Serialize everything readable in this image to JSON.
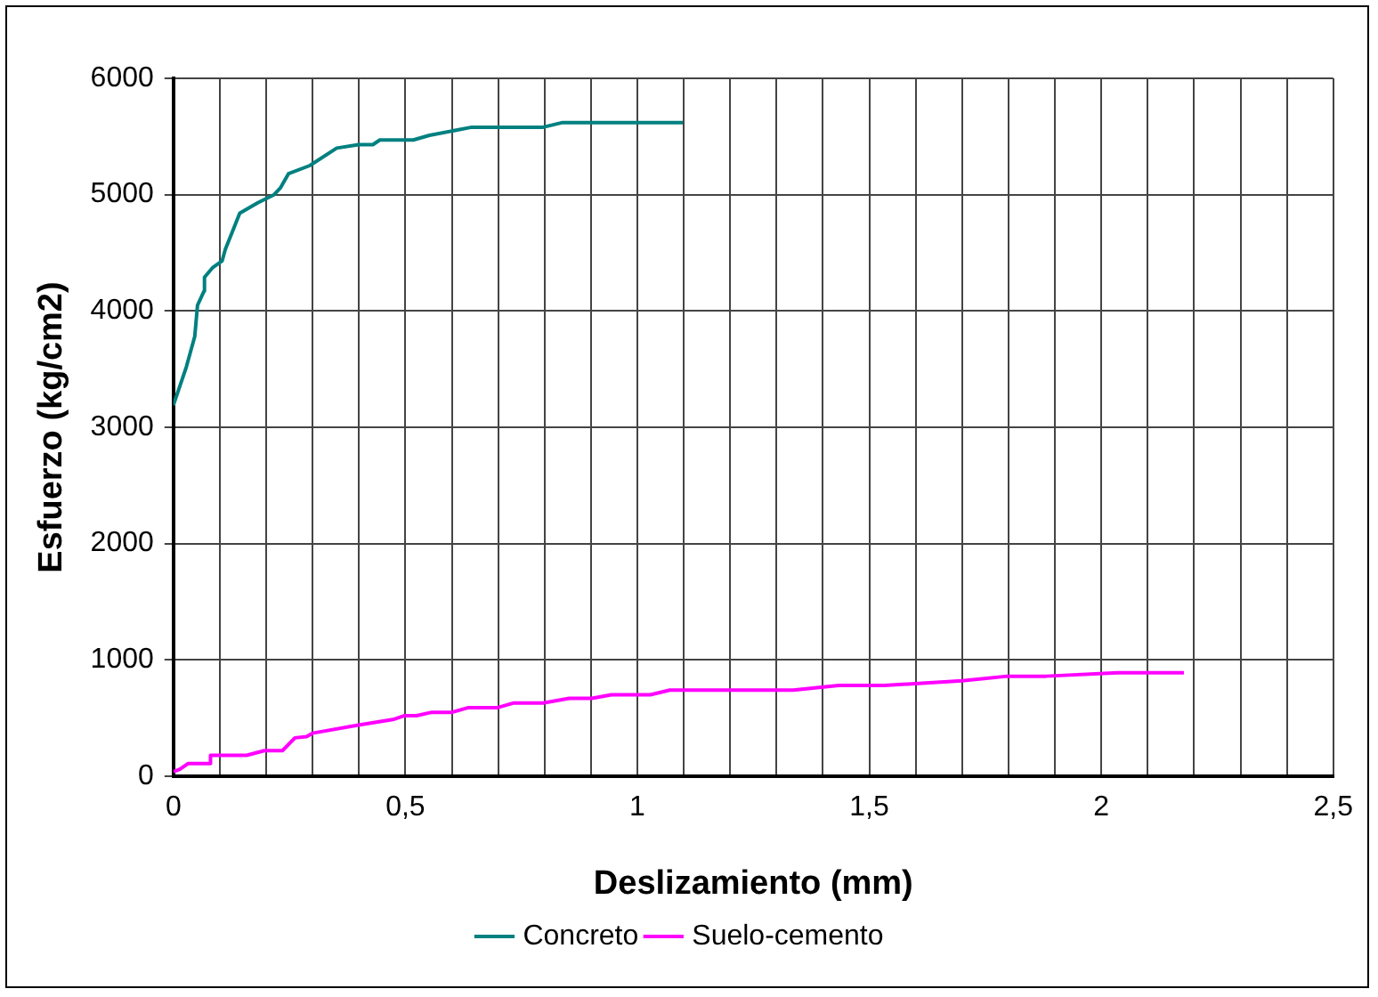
{
  "chart_data": {
    "type": "line",
    "xlabel": "Deslizamiento (mm)",
    "ylabel": "Esfuerzo (kg/cm2)",
    "xlim": [
      0,
      2.5
    ],
    "ylim": [
      0,
      6000
    ],
    "xticks": [
      0,
      {
        "value": 0.1,
        "label": null
      },
      {
        "value": 0.2,
        "label": null
      },
      {
        "value": 0.3,
        "label": null
      },
      {
        "value": 0.4,
        "label": null
      },
      {
        "value": 0.5,
        "label": "0,5"
      },
      {
        "value": 0.6,
        "label": null
      },
      {
        "value": 0.7,
        "label": null
      },
      {
        "value": 0.8,
        "label": null
      },
      {
        "value": 0.9,
        "label": null
      },
      1,
      {
        "value": 1.1,
        "label": null
      },
      {
        "value": 1.2,
        "label": null
      },
      {
        "value": 1.3,
        "label": null
      },
      {
        "value": 1.4,
        "label": null
      },
      {
        "value": 1.5,
        "label": "1,5"
      },
      {
        "value": 1.6,
        "label": null
      },
      {
        "value": 1.7,
        "label": null
      },
      {
        "value": 1.8,
        "label": null
      },
      {
        "value": 1.9,
        "label": null
      },
      2,
      {
        "value": 2.1,
        "label": null
      },
      {
        "value": 2.2,
        "label": null
      },
      {
        "value": 2.3,
        "label": null
      },
      {
        "value": 2.4,
        "label": null
      },
      {
        "value": 2.5,
        "label": "2,5"
      }
    ],
    "yticks": [
      0,
      1000,
      2000,
      3000,
      4000,
      5000,
      6000
    ],
    "grid": true,
    "legend": "bottom",
    "marker": "none",
    "line_style": "solid",
    "series": [
      {
        "name": "Concreto",
        "color": "#008080",
        "x": [
          0,
          0.028,
          0.046,
          0.052,
          0.066,
          0.067,
          0.084,
          0.105,
          0.112,
          0.143,
          0.182,
          0.217,
          0.231,
          0.248,
          0.294,
          0.352,
          0.399,
          0.43,
          0.445,
          0.517,
          0.552,
          0.643,
          0.797,
          0.839,
          1.098
        ],
        "values": [
          3190,
          3520,
          3780,
          4050,
          4170,
          4290,
          4370,
          4430,
          4530,
          4840,
          4930,
          5000,
          5060,
          5180,
          5250,
          5400,
          5430,
          5430,
          5470,
          5470,
          5510,
          5580,
          5580,
          5620,
          5620
        ]
      },
      {
        "name": "Suelo-cemento",
        "color": "#ff00ff",
        "x": [
          0,
          0.014,
          0.032,
          0.08,
          0.08,
          0.158,
          0.196,
          0.235,
          0.262,
          0.287,
          0.3,
          0.399,
          0.476,
          0.497,
          0.524,
          0.557,
          0.601,
          0.636,
          0.699,
          0.734,
          0.797,
          0.853,
          0.902,
          0.944,
          1.028,
          1.07,
          1.336,
          1.434,
          1.532,
          1.7,
          1.797,
          1.881,
          2.035,
          2.178
        ],
        "values": [
          40,
          60,
          110,
          110,
          180,
          180,
          220,
          220,
          330,
          340,
          370,
          440,
          490,
          520,
          520,
          550,
          550,
          590,
          590,
          630,
          630,
          670,
          670,
          700,
          700,
          740,
          740,
          780,
          780,
          820,
          860,
          860,
          890,
          890
        ]
      }
    ]
  }
}
